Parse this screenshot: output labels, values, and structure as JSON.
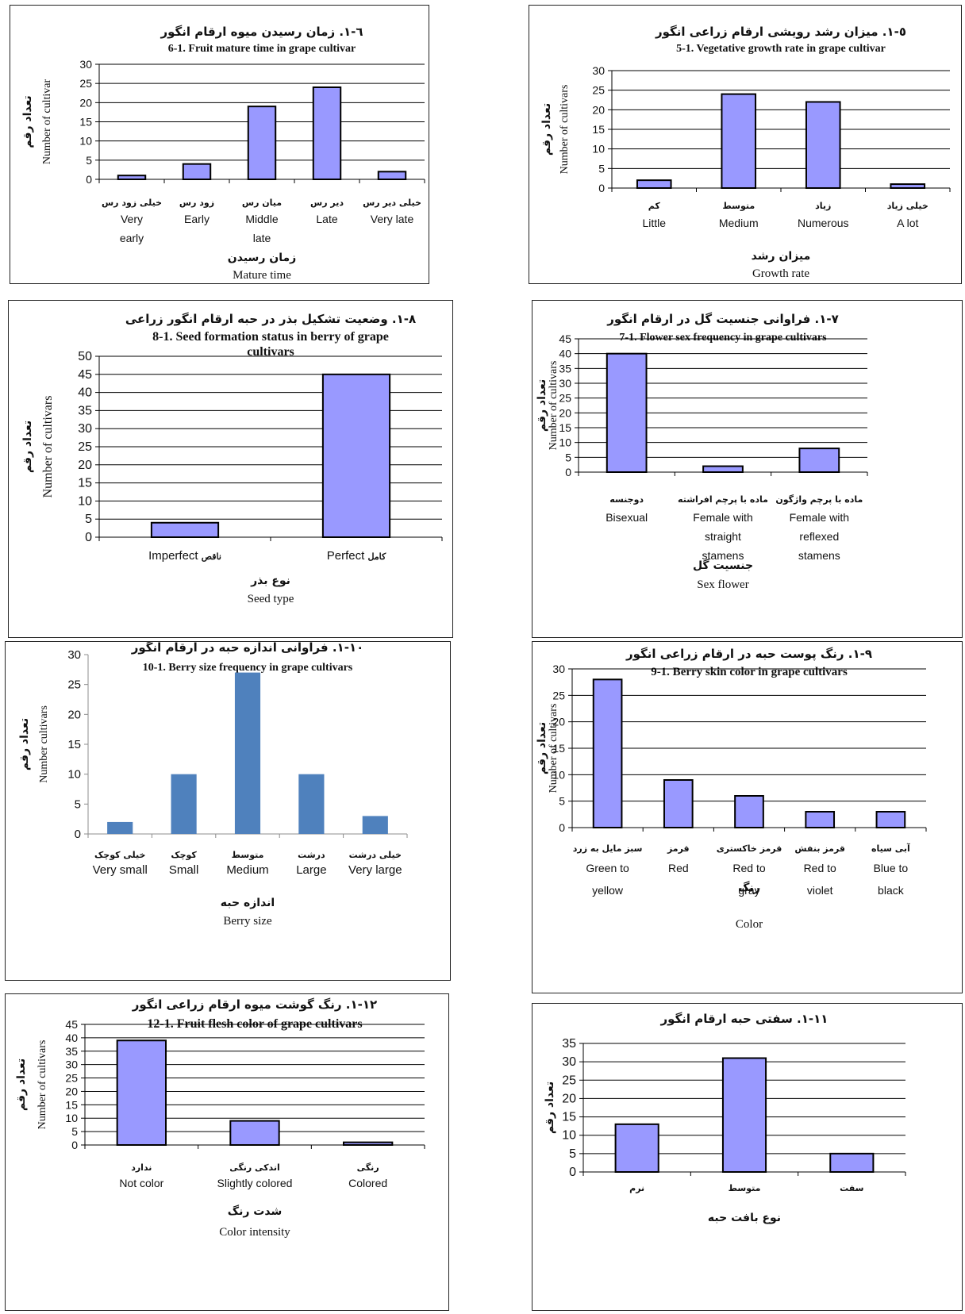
{
  "chart_data": [
    {
      "id": "p6",
      "type": "bar",
      "title_fa": "٦-١. زمان رسیدن میوه ارقام انگور",
      "title_en": "6-1. Fruit mature time in grape cultivar",
      "ylabel_fa": "تعداد رقم",
      "ylabel_en": "Number of cultivar",
      "xlabel_fa": "زمان رسیدن",
      "xlabel_en": "Mature time",
      "categories_fa": [
        "خیلی زود رس",
        "زود رس",
        "میان رس",
        "دیر رس",
        "خیلی دیر رس"
      ],
      "categories_en": [
        "Very early",
        "Early",
        "Middle late",
        "Late",
        "Very late"
      ],
      "values": [
        1,
        4,
        19,
        24,
        2
      ],
      "ylim": [
        0,
        30
      ],
      "ytick_step": 5,
      "bar_color": "#9999ff",
      "grid": true
    },
    {
      "id": "p5",
      "type": "bar",
      "title_fa": "٥-١. میزان رشد رویشی ارقام زراعی انگور",
      "title_en": "5-1. Vegetative growth rate in grape cultivar",
      "ylabel_fa": "تعداد رقم",
      "ylabel_en": "Number of cultivars",
      "xlabel_fa": "میزان رشد",
      "xlabel_en": "Growth rate",
      "categories_fa": [
        "کم",
        "متوسط",
        "زیاد",
        "خیلی زیاد"
      ],
      "categories_en": [
        "Little",
        "Medium",
        "Numerous",
        "A lot"
      ],
      "values": [
        2,
        24,
        22,
        1
      ],
      "ylim": [
        0,
        30
      ],
      "ytick_step": 5,
      "bar_color": "#9999ff",
      "grid": true
    },
    {
      "id": "p8",
      "type": "bar",
      "title_fa": "٨-١. وضعیت تشکیل بذر در حبه ارقام انگور زراعی",
      "title_en": "8-1. Seed formation status in berry of grape cultivars",
      "ylabel_fa": "تعداد رقم",
      "ylabel_en": "Number of cultivars",
      "xlabel_fa": "نوع بذر",
      "xlabel_en": "Seed type",
      "categories_fa": [
        "ناقص",
        "کامل"
      ],
      "categories_en": [
        "Imperfect",
        "Perfect"
      ],
      "values": [
        4,
        45
      ],
      "ylim": [
        0,
        50
      ],
      "ytick_step": 5,
      "bar_color": "#9999ff",
      "grid": true
    },
    {
      "id": "p7",
      "type": "bar",
      "title_fa": "٧-١. فراوانی جنسیت گل در ارقام انگور",
      "title_en": "7-1. Flower sex frequency in grape cultivars",
      "ylabel_fa": "تعداد رقم",
      "ylabel_en": "Number of cultivars",
      "xlabel_fa": "جنسیت گل",
      "xlabel_en": "Sex flower",
      "categories_fa": [
        "دوجنسه",
        "ماده با پرچم افراشته",
        "ماده با پرچم واژگون"
      ],
      "categories_en": [
        "Bisexual",
        "Female with straight stamens",
        "Female with reflexed stamens"
      ],
      "values": [
        40,
        2,
        8
      ],
      "ylim": [
        0,
        45
      ],
      "ytick_step": 5,
      "bar_color": "#9999ff",
      "grid": true
    },
    {
      "id": "p10",
      "type": "bar",
      "title_fa": "١٠-١. فراوانی اندازه حبه در ارقام انگور",
      "title_en": "10-1. Berry size frequency in grape cultivars",
      "ylabel_fa": "تعداد رقم",
      "ylabel_en": "Number cultivars",
      "xlabel_fa": "اندازه حبه",
      "xlabel_en": "Berry size",
      "categories_fa": [
        "خیلی کوچک",
        "کوچک",
        "متوسط",
        "درشت",
        "خیلی درشت"
      ],
      "categories_en": [
        "Very small",
        "Small",
        "Medium",
        "Large",
        "Very large"
      ],
      "values": [
        2,
        10,
        27,
        10,
        3
      ],
      "ylim": [
        0,
        30
      ],
      "ytick_step": 5,
      "bar_color": "#4f81bd",
      "grid": false
    },
    {
      "id": "p9",
      "type": "bar",
      "title_fa": "٩-١. رنگ پوست حبه در ارقام زراعی انگور",
      "title_en": "9-1. Berry skin color in grape cultivars",
      "ylabel_fa": "تعداد رقم",
      "ylabel_en": "Number of cultivars",
      "xlabel_fa": "رنگ",
      "xlabel_en": "Color",
      "categories_fa": [
        "سبز مایل به زرد",
        "قرمز",
        "قرمز خاکستری",
        "قرمز بنفش",
        "آبی سیاه"
      ],
      "categories_en": [
        "Green to yellow",
        "Red",
        "Red to gray",
        "Red to violet",
        "Blue to black"
      ],
      "values": [
        28,
        9,
        6,
        3,
        3
      ],
      "ylim": [
        0,
        30
      ],
      "ytick_step": 5,
      "bar_color": "#9999ff",
      "grid": true
    },
    {
      "id": "p12",
      "type": "bar",
      "title_fa": "١٢-١. رنگ گوشت میوه ارقام زراعی انگور",
      "title_en": "12-1. Fruit flesh color of grape cultivars",
      "ylabel_fa": "تعداد رقم",
      "ylabel_en": "Number of cultivars",
      "xlabel_fa": "شدت رنگ",
      "xlabel_en": "Color intensity",
      "categories_fa": [
        "ندارد",
        "اندکی رنگی",
        "رنگی"
      ],
      "categories_en": [
        "Not color",
        "Slightly colored",
        "Colored"
      ],
      "values": [
        39,
        9,
        1
      ],
      "ylim": [
        0,
        45
      ],
      "ytick_step": 5,
      "bar_color": "#9999ff",
      "grid": true
    },
    {
      "id": "p11",
      "type": "bar",
      "title_fa": "١١-١. سفتی حبه ارقام انگور",
      "title_en": "",
      "ylabel_fa": "تعداد رقم",
      "ylabel_en": "",
      "xlabel_fa": "نوع بافت حبه",
      "xlabel_en": "",
      "categories_fa": [
        "نرم",
        "متوسط",
        "سفت"
      ],
      "categories_en": [],
      "values": [
        13,
        31,
        5
      ],
      "ylim": [
        0,
        35
      ],
      "ytick_step": 5,
      "bar_color": "#9999ff",
      "grid": true
    }
  ]
}
